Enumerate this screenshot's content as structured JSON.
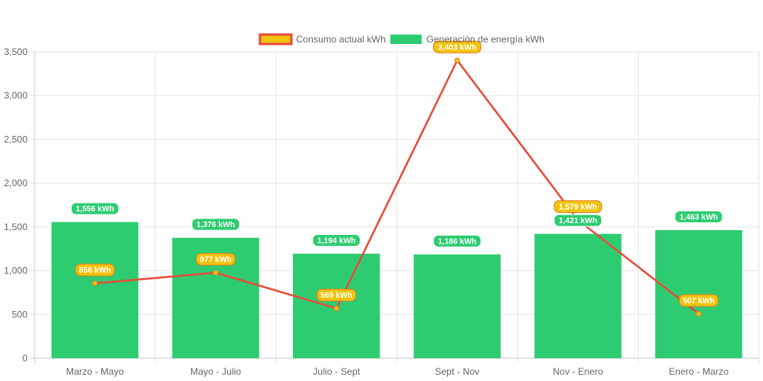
{
  "chart_data": {
    "type": "bar",
    "categories": [
      "Marzo - Mayo",
      "Mayo - Julio",
      "Julio - Sept",
      "Sept - Nov",
      "Nov - Enero",
      "Enero - Marzo"
    ],
    "series": [
      {
        "name": "Generación de energía kWh",
        "type": "bar",
        "values": [
          1556,
          1376,
          1194,
          1186,
          1421,
          1463
        ],
        "labels": [
          "1,556 kWh",
          "1,376 kWh",
          "1,194 kWh",
          "1,186 kWh",
          "1,421 kWh",
          "1,463 kWh"
        ],
        "color": "#2ecc71"
      },
      {
        "name": "Consumo actual kWh",
        "type": "line",
        "values": [
          856,
          977,
          569,
          3403,
          1579,
          507
        ],
        "labels": [
          "856 kWh",
          "977 kWh",
          "569 kWh",
          "3,403 kWh",
          "1,579 kWh",
          "507 kWh"
        ],
        "color": "#e74c3c",
        "point_color": "#f1c40f"
      }
    ],
    "yticks": [
      "0",
      "500",
      "1,000",
      "1,500",
      "2,000",
      "2,500",
      "3,000",
      "3,500"
    ],
    "ylim": [
      0,
      3500
    ],
    "grid": true,
    "legend_position": "top",
    "legend": [
      {
        "label": "Consumo actual kWh",
        "fill": "#f1c40f",
        "stroke": "#e74c3c"
      },
      {
        "label": "Generación de energía kWh",
        "fill": "#2ecc71",
        "stroke": "#2ecc71"
      }
    ]
  }
}
